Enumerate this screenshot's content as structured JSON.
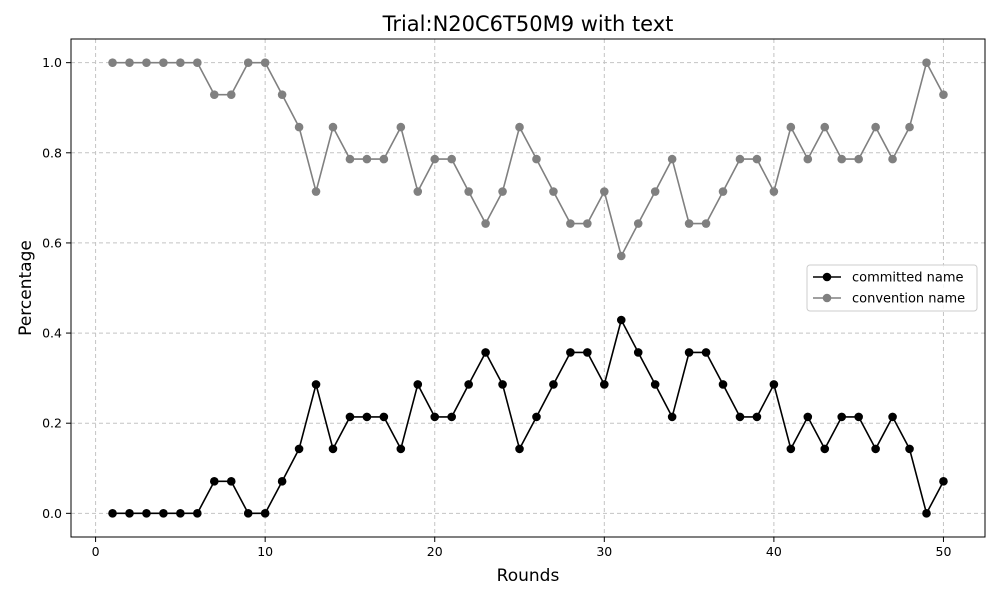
{
  "chart_data": {
    "type": "line",
    "title": "Trial:N20C6T50M9 with text",
    "xlabel": "Rounds",
    "ylabel": "Percentage",
    "xlim": [
      -1.45,
      52.45
    ],
    "ylim": [
      -0.0525,
      1.0525
    ],
    "xticks": [
      0,
      10,
      20,
      30,
      40,
      50
    ],
    "yticks": [
      "0.0",
      "0.2",
      "0.4",
      "0.6",
      "0.8",
      "1.0"
    ],
    "grid": true,
    "legend_position": "center-right",
    "x": [
      1,
      2,
      3,
      4,
      5,
      6,
      7,
      8,
      9,
      10,
      11,
      12,
      13,
      14,
      15,
      16,
      17,
      18,
      19,
      20,
      21,
      22,
      23,
      24,
      25,
      26,
      27,
      28,
      29,
      30,
      31,
      32,
      33,
      34,
      35,
      36,
      37,
      38,
      39,
      40,
      41,
      42,
      43,
      44,
      45,
      46,
      47,
      48,
      49,
      50
    ],
    "series": [
      {
        "name": "committed name",
        "color": "#000000",
        "values": [
          0,
          0,
          0,
          0,
          0,
          0,
          0.071,
          0.071,
          0,
          0,
          0.071,
          0.143,
          0.286,
          0.143,
          0.214,
          0.214,
          0.214,
          0.143,
          0.286,
          0.214,
          0.214,
          0.286,
          0.357,
          0.286,
          0.143,
          0.214,
          0.286,
          0.357,
          0.357,
          0.286,
          0.429,
          0.357,
          0.286,
          0.214,
          0.357,
          0.357,
          0.286,
          0.214,
          0.214,
          0.286,
          0.143,
          0.214,
          0.143,
          0.214,
          0.214,
          0.143,
          0.214,
          0.143,
          0,
          0.071
        ]
      },
      {
        "name": "convention name",
        "color": "#808080",
        "values": [
          1,
          1,
          1,
          1,
          1,
          1,
          0.929,
          0.929,
          1,
          1,
          0.929,
          0.857,
          0.714,
          0.857,
          0.786,
          0.786,
          0.786,
          0.857,
          0.714,
          0.786,
          0.786,
          0.714,
          0.643,
          0.714,
          0.857,
          0.786,
          0.714,
          0.643,
          0.643,
          0.714,
          0.571,
          0.643,
          0.714,
          0.786,
          0.643,
          0.643,
          0.714,
          0.786,
          0.786,
          0.714,
          0.857,
          0.786,
          0.857,
          0.786,
          0.786,
          0.857,
          0.786,
          0.857,
          1,
          0.929
        ]
      }
    ]
  }
}
